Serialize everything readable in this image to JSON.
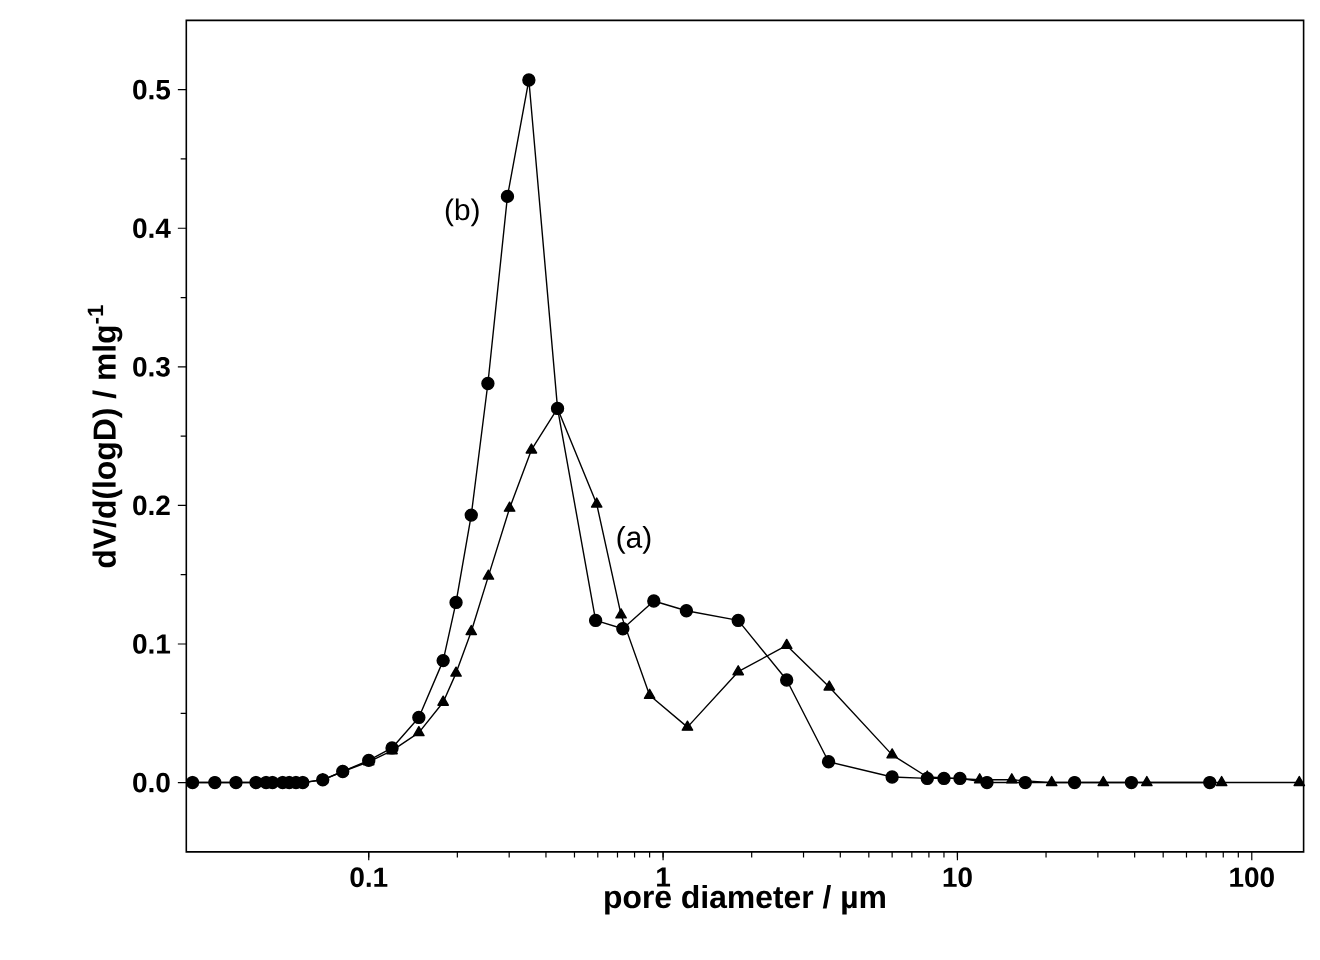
{
  "chart_data": {
    "type": "line",
    "xlabel": "pore diameter / µm",
    "ylabel": "dV/d(logD) / mlg$^{-1}$",
    "log": "x",
    "xlim": [
      0.024,
      150
    ],
    "ylim": [
      -0.05,
      0.55
    ],
    "xticks": [
      0.1,
      1,
      10,
      100
    ],
    "yticks": [
      {
        "value": 0,
        "label": "0.0"
      },
      0.1,
      0.2,
      0.3,
      0.4,
      0.5
    ],
    "grid": false,
    "annotations": [
      "(b)",
      "(a)"
    ],
    "series": [
      {
        "color": "#000000",
        "marker": "circle",
        "x": [
          0.0252,
          0.03,
          0.0354,
          0.0414,
          0.0448,
          0.0471,
          0.051,
          0.0537,
          0.0566,
          0.0597,
          0.0698,
          0.0816,
          0.1,
          0.12,
          0.148,
          0.179,
          0.198,
          0.223,
          0.254,
          0.296,
          0.35,
          0.438,
          0.59,
          0.73,
          0.93,
          1.2,
          1.8,
          2.63,
          3.65,
          6.0,
          7.9,
          9.0,
          10.2,
          12.6,
          17,
          25,
          39,
          72
        ],
        "values": [
          0,
          0,
          0,
          0,
          0,
          0,
          0,
          0,
          0,
          0,
          0.002,
          0.008,
          0.016,
          0.025,
          0.047,
          0.088,
          0.13,
          0.193,
          0.288,
          0.423,
          0.507,
          0.27,
          0.117,
          0.111,
          0.131,
          0.124,
          0.117,
          0.074,
          0.015,
          0.004,
          0.003,
          0.003,
          0.003,
          0,
          0,
          0,
          0,
          0
        ]
      },
      {
        "color": "#000000",
        "marker": "triangle",
        "x": [
          0.0252,
          0.0354,
          0.0414,
          0.0448,
          0.0471,
          0.051,
          0.0537,
          0.0566,
          0.0597,
          0.0698,
          0.0816,
          0.1,
          0.12,
          0.148,
          0.179,
          0.198,
          0.223,
          0.255,
          0.301,
          0.357,
          0.438,
          0.595,
          0.72,
          0.9,
          1.21,
          1.8,
          2.63,
          3.67,
          6.0,
          7.9,
          11.9,
          15.3,
          20.9,
          31.3,
          44,
          79,
          145
        ],
        "values": [
          0,
          0,
          0,
          0,
          0,
          0,
          0,
          0,
          0,
          0.002,
          0.008,
          0.015,
          0.023,
          0.036,
          0.058,
          0.079,
          0.109,
          0.149,
          0.198,
          0.24,
          0.27,
          0.201,
          0.121,
          0.063,
          0.04,
          0.08,
          0.099,
          0.069,
          0.02,
          0.004,
          0.002,
          0.002,
          0,
          0,
          0,
          0,
          0
        ]
      }
    ]
  }
}
